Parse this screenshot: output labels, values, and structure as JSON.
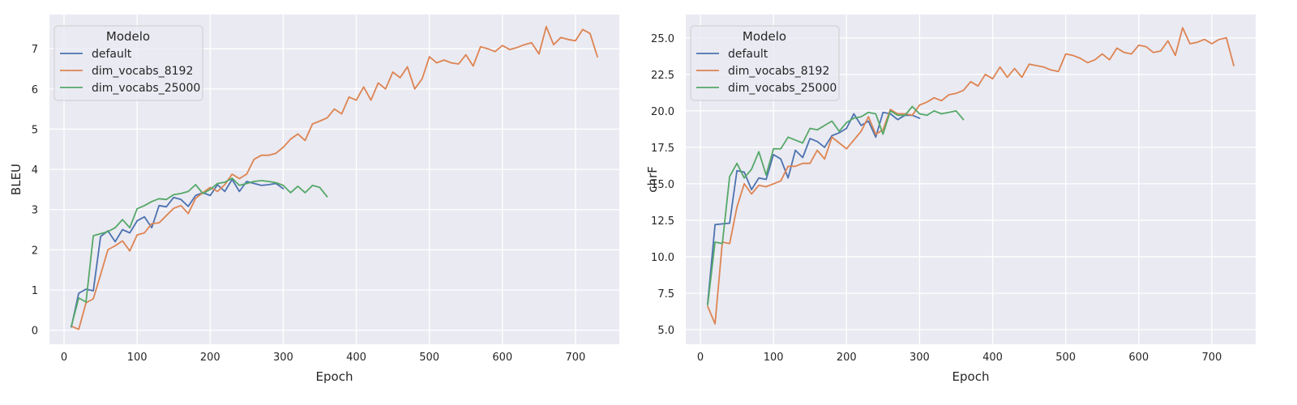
{
  "chart_data": [
    {
      "type": "line",
      "xlabel": "Epoch",
      "ylabel": "BLEU",
      "xlim": [
        -20,
        760
      ],
      "ylim": [
        -0.35,
        7.85
      ],
      "xticks": [
        0,
        100,
        200,
        300,
        400,
        500,
        600,
        700
      ],
      "yticks": [
        0,
        1,
        2,
        3,
        4,
        5,
        6,
        7
      ],
      "ytick_labels": [
        "0",
        "1",
        "2",
        "3",
        "4",
        "5",
        "6",
        "7"
      ],
      "grid": true,
      "legend": {
        "title": "Modelo",
        "placement": "top-left"
      },
      "series": [
        {
          "name": "default",
          "color": "#4C72B0",
          "x": [
            10,
            20,
            30,
            40,
            50,
            60,
            70,
            80,
            90,
            100,
            110,
            120,
            130,
            140,
            150,
            160,
            170,
            180,
            190,
            200,
            210,
            220,
            230,
            240,
            250,
            260,
            270,
            280,
            290,
            300
          ],
          "y": [
            0.08,
            0.92,
            1.02,
            0.98,
            2.33,
            2.47,
            2.2,
            2.5,
            2.42,
            2.72,
            2.82,
            2.55,
            3.1,
            3.07,
            3.3,
            3.25,
            3.08,
            3.35,
            3.42,
            3.35,
            3.62,
            3.45,
            3.75,
            3.45,
            3.7,
            3.65,
            3.6,
            3.62,
            3.65,
            3.52
          ]
        },
        {
          "name": "dim_vocabs_8192",
          "color": "#DD8452",
          "x": [
            10,
            20,
            30,
            40,
            50,
            60,
            70,
            80,
            90,
            100,
            110,
            120,
            130,
            140,
            150,
            160,
            170,
            180,
            190,
            200,
            210,
            220,
            230,
            240,
            250,
            260,
            270,
            280,
            290,
            300,
            310,
            320,
            330,
            340,
            350,
            360,
            370,
            380,
            390,
            400,
            410,
            420,
            430,
            440,
            450,
            460,
            470,
            480,
            490,
            500,
            510,
            520,
            530,
            540,
            550,
            560,
            570,
            580,
            590,
            600,
            610,
            620,
            630,
            640,
            650,
            660,
            670,
            680,
            690,
            700,
            710,
            720,
            730
          ],
          "y": [
            0.1,
            0.02,
            0.68,
            0.78,
            1.38,
            2.0,
            2.1,
            2.22,
            1.97,
            2.37,
            2.42,
            2.65,
            2.67,
            2.85,
            3.03,
            3.1,
            2.9,
            3.28,
            3.42,
            3.55,
            3.45,
            3.62,
            3.88,
            3.77,
            3.88,
            4.25,
            4.35,
            4.35,
            4.4,
            4.55,
            4.75,
            4.88,
            4.72,
            5.13,
            5.2,
            5.28,
            5.5,
            5.38,
            5.8,
            5.72,
            6.05,
            5.72,
            6.15,
            6.0,
            6.42,
            6.28,
            6.55,
            6.0,
            6.25,
            6.8,
            6.65,
            6.72,
            6.65,
            6.62,
            6.85,
            6.57,
            7.05,
            7.0,
            6.93,
            7.08,
            6.98,
            7.03,
            7.1,
            7.15,
            6.87,
            7.55,
            7.1,
            7.28,
            7.23,
            7.2,
            7.48,
            7.38,
            6.8
          ]
        },
        {
          "name": "dim_vocabs_25000",
          "color": "#55A868",
          "x": [
            10,
            20,
            30,
            40,
            50,
            60,
            70,
            80,
            90,
            100,
            110,
            120,
            130,
            140,
            150,
            160,
            170,
            180,
            190,
            200,
            210,
            220,
            230,
            240,
            250,
            260,
            270,
            280,
            290,
            300,
            310,
            320,
            330,
            340,
            350,
            360
          ],
          "y": [
            0.1,
            0.8,
            0.7,
            2.35,
            2.4,
            2.45,
            2.55,
            2.75,
            2.55,
            3.02,
            3.1,
            3.2,
            3.27,
            3.25,
            3.37,
            3.4,
            3.45,
            3.62,
            3.4,
            3.5,
            3.65,
            3.68,
            3.78,
            3.6,
            3.65,
            3.7,
            3.72,
            3.7,
            3.67,
            3.6,
            3.42,
            3.58,
            3.42,
            3.6,
            3.55,
            3.32
          ]
        }
      ]
    },
    {
      "type": "line",
      "xlabel": "Epoch",
      "ylabel": "chrF",
      "xlim": [
        -20,
        760
      ],
      "ylim": [
        4.0,
        26.6
      ],
      "xticks": [
        0,
        100,
        200,
        300,
        400,
        500,
        600,
        700
      ],
      "yticks": [
        5.0,
        7.5,
        10.0,
        12.5,
        15.0,
        17.5,
        20.0,
        22.5,
        25.0
      ],
      "ytick_labels": [
        "5.0",
        "7.5",
        "10.0",
        "12.5",
        "15.0",
        "17.5",
        "20.0",
        "22.5",
        "25.0"
      ],
      "grid": true,
      "legend": {
        "title": "Modelo",
        "placement": "top-left"
      },
      "series": [
        {
          "name": "default",
          "color": "#4C72B0",
          "x": [
            10,
            20,
            30,
            40,
            50,
            60,
            70,
            80,
            90,
            100,
            110,
            120,
            130,
            140,
            150,
            160,
            170,
            180,
            190,
            200,
            210,
            220,
            230,
            240,
            250,
            260,
            270,
            280,
            290,
            300
          ],
          "y": [
            6.8,
            12.2,
            12.25,
            12.3,
            15.9,
            15.8,
            14.6,
            15.4,
            15.3,
            17.0,
            16.7,
            15.4,
            17.3,
            16.8,
            18.1,
            17.9,
            17.5,
            18.3,
            18.5,
            18.8,
            19.8,
            19.0,
            19.3,
            18.2,
            19.9,
            19.8,
            19.4,
            19.7,
            19.7,
            19.5
          ]
        },
        {
          "name": "dim_vocabs_8192",
          "color": "#DD8452",
          "x": [
            10,
            20,
            30,
            40,
            50,
            60,
            70,
            80,
            90,
            100,
            110,
            120,
            130,
            140,
            150,
            160,
            170,
            180,
            190,
            200,
            210,
            220,
            230,
            240,
            250,
            260,
            270,
            280,
            290,
            300,
            310,
            320,
            330,
            340,
            350,
            360,
            370,
            380,
            390,
            400,
            410,
            420,
            430,
            440,
            450,
            460,
            470,
            480,
            490,
            500,
            510,
            520,
            530,
            540,
            550,
            560,
            570,
            580,
            590,
            600,
            610,
            620,
            630,
            640,
            650,
            660,
            670,
            680,
            690,
            700,
            710,
            720,
            730
          ],
          "y": [
            6.6,
            5.4,
            11.0,
            10.9,
            13.4,
            15.0,
            14.3,
            14.9,
            14.8,
            15.0,
            15.2,
            16.2,
            16.2,
            16.4,
            16.4,
            17.3,
            16.7,
            18.2,
            17.8,
            17.4,
            18.0,
            18.6,
            19.6,
            18.4,
            18.7,
            20.1,
            19.8,
            19.8,
            19.7,
            20.4,
            20.6,
            20.9,
            20.7,
            21.1,
            21.2,
            21.4,
            22.0,
            21.7,
            22.5,
            22.2,
            23.0,
            22.3,
            22.9,
            22.3,
            23.2,
            23.1,
            23.0,
            22.8,
            22.7,
            23.9,
            23.8,
            23.6,
            23.3,
            23.5,
            23.9,
            23.5,
            24.3,
            24.0,
            23.9,
            24.5,
            24.4,
            24.0,
            24.1,
            24.8,
            23.8,
            25.7,
            24.6,
            24.7,
            24.9,
            24.6,
            24.9,
            25.0,
            23.1
          ]
        },
        {
          "name": "dim_vocabs_25000",
          "color": "#55A868",
          "x": [
            10,
            20,
            30,
            40,
            50,
            60,
            70,
            80,
            90,
            100,
            110,
            120,
            130,
            140,
            150,
            160,
            170,
            180,
            190,
            200,
            210,
            220,
            230,
            240,
            250,
            260,
            270,
            280,
            290,
            300,
            310,
            320,
            330,
            340,
            350,
            360
          ],
          "y": [
            6.7,
            11.0,
            10.9,
            15.5,
            16.4,
            15.4,
            16.0,
            17.2,
            15.6,
            17.4,
            17.4,
            18.2,
            18.0,
            17.8,
            18.8,
            18.7,
            19.0,
            19.3,
            18.6,
            19.2,
            19.5,
            19.6,
            19.9,
            19.8,
            18.4,
            20.0,
            19.7,
            19.7,
            20.3,
            19.8,
            19.7,
            20.0,
            19.8,
            19.9,
            20.0,
            19.4
          ]
        }
      ]
    }
  ]
}
